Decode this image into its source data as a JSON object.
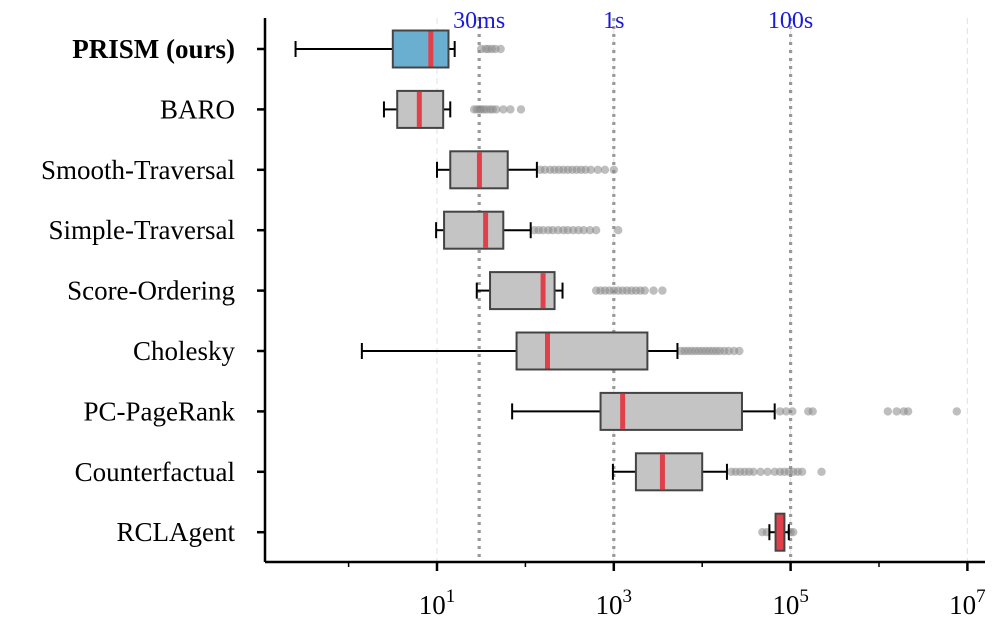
{
  "chart_data": {
    "type": "box",
    "title": "",
    "xlabel": "",
    "ylabel": "",
    "xscale": "log10",
    "xlim_log10": [
      -1.0,
      7.3
    ],
    "x_ticks": [
      {
        "exp": 1,
        "base": "10",
        "sup": "1"
      },
      {
        "exp": 3,
        "base": "10",
        "sup": "3"
      },
      {
        "exp": 5,
        "base": "10",
        "sup": "5"
      },
      {
        "exp": 7,
        "base": "10",
        "sup": "7"
      }
    ],
    "reference_lines": [
      {
        "label": "30ms",
        "log10": 1.477
      },
      {
        "label": "1s",
        "log10": 3.0
      },
      {
        "label": "100s",
        "log10": 5.0
      }
    ],
    "colors": {
      "highlight_box": "#6aaed0",
      "default_box": "#c4c4c4",
      "median": "#e0404a",
      "outlier": "#888888",
      "ref_line": "#999999",
      "ref_text": "#1a1adb"
    },
    "series": [
      {
        "name": "PRISM (ours)",
        "bold": true,
        "color": "#6aaed0",
        "whisker_low": -0.6,
        "q1": 0.5,
        "median": 0.93,
        "q3": 1.13,
        "whisker_high": 1.2,
        "outliers": [
          1.5,
          1.55,
          1.58,
          1.62,
          1.66,
          1.72
        ]
      },
      {
        "name": "BARO",
        "bold": false,
        "color": "#c4c4c4",
        "whisker_low": 0.4,
        "q1": 0.55,
        "median": 0.8,
        "q3": 1.07,
        "whisker_high": 1.15,
        "outliers": [
          1.42,
          1.45,
          1.48,
          1.5,
          1.53,
          1.56,
          1.6,
          1.63,
          1.67,
          1.75,
          1.83,
          1.95
        ]
      },
      {
        "name": "Smooth-Traversal",
        "bold": false,
        "color": "#c4c4c4",
        "whisker_low": 1.0,
        "q1": 1.15,
        "median": 1.48,
        "q3": 1.8,
        "whisker_high": 2.13,
        "outliers": [
          2.17,
          2.22,
          2.28,
          2.33,
          2.38,
          2.43,
          2.48,
          2.53,
          2.58,
          2.63,
          2.68,
          2.74,
          2.82,
          2.9,
          3.0
        ]
      },
      {
        "name": "Simple-Traversal",
        "bold": false,
        "color": "#c4c4c4",
        "whisker_low": 0.99,
        "q1": 1.08,
        "median": 1.55,
        "q3": 1.75,
        "whisker_high": 2.06,
        "outliers": [
          2.1,
          2.15,
          2.2,
          2.26,
          2.31,
          2.37,
          2.43,
          2.48,
          2.54,
          2.6,
          2.66,
          2.73,
          2.8,
          3.05
        ]
      },
      {
        "name": "Score-Ordering",
        "bold": false,
        "color": "#c4c4c4",
        "whisker_low": 1.45,
        "q1": 1.6,
        "median": 2.2,
        "q3": 2.33,
        "whisker_high": 2.42,
        "outliers": [
          2.8,
          2.85,
          2.9,
          2.95,
          3.0,
          3.05,
          3.1,
          3.15,
          3.2,
          3.25,
          3.3,
          3.35,
          3.45,
          3.55
        ]
      },
      {
        "name": "Cholesky",
        "bold": false,
        "color": "#c4c4c4",
        "whisker_low": 0.15,
        "q1": 1.9,
        "median": 2.25,
        "q3": 3.38,
        "whisker_high": 3.72,
        "outliers": [
          3.76,
          3.8,
          3.84,
          3.88,
          3.92,
          3.96,
          4.0,
          4.04,
          4.08,
          4.12,
          4.16,
          4.2,
          4.25,
          4.3,
          4.36,
          4.42
        ]
      },
      {
        "name": "PC-PageRank",
        "bold": false,
        "color": "#c4c4c4",
        "whisker_low": 1.85,
        "q1": 2.85,
        "median": 3.1,
        "q3": 4.45,
        "whisker_high": 4.82,
        "outliers": [
          4.88,
          4.95,
          5.02,
          5.2,
          5.25,
          6.1,
          6.2,
          6.28,
          6.33,
          6.88
        ]
      },
      {
        "name": "Counterfactual",
        "bold": false,
        "color": "#c4c4c4",
        "whisker_low": 2.99,
        "q1": 3.25,
        "median": 3.55,
        "q3": 4.0,
        "whisker_high": 4.28,
        "outliers": [
          4.33,
          4.38,
          4.43,
          4.48,
          4.53,
          4.58,
          4.66,
          4.74,
          4.82,
          4.88,
          4.93,
          4.98,
          5.03,
          5.08,
          5.13,
          5.35
        ]
      },
      {
        "name": "RCLAgent",
        "bold": false,
        "color": "#e0404a",
        "whisker_low": 4.76,
        "q1": 4.83,
        "median": 4.87,
        "q3": 4.93,
        "whisker_high": 4.98,
        "outliers": [
          4.68,
          4.73,
          5.0,
          5.03
        ]
      }
    ]
  }
}
